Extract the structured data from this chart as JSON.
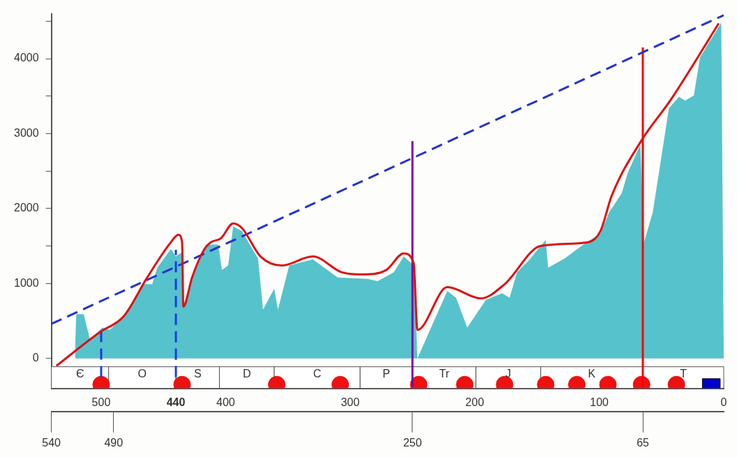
{
  "chart_data": {
    "type": "area",
    "xlim": [
      540,
      0
    ],
    "ylim": [
      -400,
      4600
    ],
    "xticks": [
      500,
      {
        "value": 440,
        "label": "440"
      },
      400,
      300,
      200,
      100,
      0
    ],
    "x2lim": [
      540,
      0
    ],
    "x2ticks": [
      540,
      490,
      250,
      65
    ],
    "yticks": [
      0,
      1000,
      {
        "value": 1500,
        "label": null
      },
      2000,
      {
        "value": 2500,
        "label": null
      },
      3000,
      {
        "value": 3500,
        "label": null
      },
      4000,
      {
        "value": 4500,
        "label": null
      }
    ],
    "grid": false,
    "legend": false,
    "bands": [
      {
        "axis": "x",
        "from": 540,
        "to": 494,
        "label": "Є",
        "color": "#ffffff"
      },
      {
        "axis": "x",
        "from": 494,
        "to": 440,
        "label": "O",
        "color": "#ffffff"
      },
      {
        "axis": "x",
        "from": 440,
        "to": 405,
        "label": "S",
        "color": "#ffffff"
      },
      {
        "axis": "x",
        "from": 405,
        "to": 361,
        "label": "D",
        "color": "#ffffff"
      },
      {
        "axis": "x",
        "from": 361,
        "to": 292,
        "label": "C",
        "color": "#ffffff"
      },
      {
        "axis": "x",
        "from": 292,
        "to": 250,
        "label": "P",
        "color": "#ffffff"
      },
      {
        "axis": "x",
        "from": 250,
        "to": 199,
        "label": "Tr",
        "color": "#ffffff"
      },
      {
        "axis": "x",
        "from": 199,
        "to": 147,
        "label": "J",
        "color": "#ffffff"
      },
      {
        "axis": "x",
        "from": 147,
        "to": 65,
        "label": "K",
        "color": "#ffffff"
      },
      {
        "axis": "x",
        "from": 65,
        "to": 0,
        "label": "T",
        "color": "#ffffff"
      }
    ],
    "series": [
      {
        "color": "#56c2cc",
        "x": [
          521,
          520,
          514,
          509,
          499,
          493,
          482,
          466,
          459,
          455,
          444,
          440,
          435,
          434,
          427,
          415,
          406,
          403,
          398,
          394,
          387,
          374,
          370,
          361,
          358,
          349,
          330,
          310,
          286,
          278,
          265,
          257,
          249,
          246,
          222,
          215,
          206,
          191,
          178,
          172,
          166,
          157,
          143,
          141,
          128,
          115,
          99,
          92,
          82,
          77,
          67,
          64,
          57,
          44,
          36,
          31,
          24,
          19,
          2,
          0
        ],
        "values": [
          100,
          590,
          590,
          250,
          410,
          380,
          560,
          990,
          990,
          1210,
          1460,
          1360,
          1420,
          700,
          1080,
          1520,
          1520,
          1180,
          1240,
          1760,
          1700,
          1330,
          650,
          930,
          650,
          1240,
          1320,
          1080,
          1060,
          1030,
          1150,
          1360,
          1240,
          0,
          900,
          810,
          410,
          780,
          870,
          810,
          1150,
          1300,
          1580,
          1210,
          1330,
          1490,
          1670,
          1950,
          2200,
          2480,
          2850,
          1550,
          1950,
          3340,
          3490,
          3440,
          3510,
          4020,
          4480,
          0
        ]
      },
      {
        "type": "line",
        "color": "#dd1111",
        "x": [
          536,
          501,
          482,
          463,
          444,
          438,
          435,
          434,
          427,
          417,
          412,
          404,
          394,
          387,
          372,
          355,
          330,
          307,
          290,
          271,
          257,
          249,
          246,
          222,
          195,
          176,
          147,
          109,
          99,
          90,
          66,
          43,
          4
        ],
        "values": [
          -100,
          350,
          560,
          1080,
          1550,
          1650,
          1550,
          690,
          1080,
          1460,
          1550,
          1600,
          1800,
          1740,
          1360,
          1240,
          1360,
          1150,
          1120,
          1180,
          1400,
          1270,
          380,
          950,
          800,
          990,
          1500,
          1550,
          1700,
          2170,
          2910,
          3440,
          4470
        ]
      },
      {
        "type": "line",
        "color": "#2233cc",
        "line_style": "dashed",
        "x": [
          540,
          0
        ],
        "values": [
          460,
          4580
        ]
      },
      {
        "type": "line",
        "color": "#1a3cdd",
        "line_style": "dashed",
        "x": [
          500,
          500
        ],
        "values": [
          -250,
          360
        ]
      },
      {
        "type": "line",
        "color": "#1a3cdd",
        "line_style": "dashed",
        "x": [
          440,
          440
        ],
        "values": [
          -250,
          1450
        ]
      },
      {
        "type": "line",
        "color": "#7a0aa0",
        "x": [
          250,
          250
        ],
        "values": [
          -380,
          2900
        ]
      },
      {
        "type": "line",
        "color": "#ff0000",
        "x": [
          65,
          65
        ],
        "values": [
          -380,
          4150
        ]
      },
      {
        "type": "scatter",
        "color": "#ee1111",
        "marker": "circle",
        "x": [
          500,
          435,
          359,
          308,
          245,
          208,
          176,
          143,
          118,
          93,
          66,
          38
        ],
        "values": [
          -350,
          -350,
          -350,
          -350,
          -350,
          -350,
          -350,
          -350,
          -350,
          -350,
          -350,
          -350
        ]
      },
      {
        "type": "scatter",
        "color": "#0000cc",
        "marker": "square",
        "x": [
          10
        ],
        "values": [
          -390
        ]
      }
    ]
  }
}
